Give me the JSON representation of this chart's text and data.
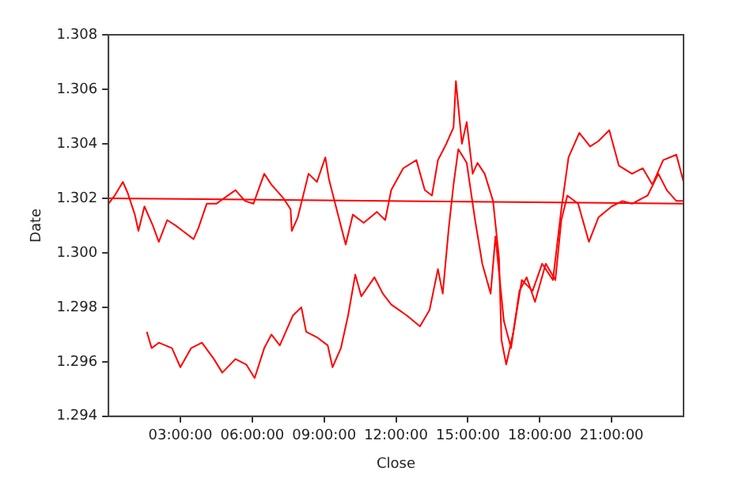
{
  "chart_data": {
    "type": "line",
    "xlabel": "Close",
    "ylabel": "Date",
    "xlim": [
      0,
      24
    ],
    "ylim": [
      1.294,
      1.308
    ],
    "xticks": [
      {
        "value": 3,
        "label": "03:00:00"
      },
      {
        "value": 6,
        "label": "06:00:00"
      },
      {
        "value": 9,
        "label": "09:00:00"
      },
      {
        "value": 12,
        "label": "12:00:00"
      },
      {
        "value": 15,
        "label": "15:00:00"
      },
      {
        "value": 18,
        "label": "18:00:00"
      },
      {
        "value": 21,
        "label": "21:00:00"
      }
    ],
    "yticks": [
      {
        "value": 1.294,
        "label": "1.294"
      },
      {
        "value": 1.296,
        "label": "1.296"
      },
      {
        "value": 1.298,
        "label": "1.298"
      },
      {
        "value": 1.3,
        "label": "1.300"
      },
      {
        "value": 1.302,
        "label": "1.302"
      },
      {
        "value": 1.304,
        "label": "1.304"
      },
      {
        "value": 1.306,
        "label": "1.306"
      },
      {
        "value": 1.308,
        "label": "1.308"
      }
    ],
    "grid": false,
    "legend": false,
    "marker": "none",
    "line_style": "solid",
    "series": [
      {
        "color": "#ff0000",
        "x": [
          0,
          0.26,
          0.6,
          0.8,
          1.1,
          1.25,
          1.5,
          1.85,
          2.1,
          2.45,
          2.8,
          3.1,
          3.55,
          3.75,
          4.1,
          4.5,
          5.3,
          5.7,
          6.05,
          6.5,
          6.8,
          7.3,
          7.6,
          7.65,
          7.9,
          8.35,
          8.7,
          9.05,
          9.2,
          9.55,
          9.9,
          10.2,
          10.65,
          11.2,
          11.55,
          11.8,
          12.3,
          12.85,
          13.2,
          13.5,
          13.75,
          14.1,
          14.4,
          14.5,
          14.75,
          14.95,
          15.2,
          15.4,
          15.7,
          16.05,
          16.3,
          16.4,
          16.6,
          16.9,
          17.25,
          17.7,
          18.1,
          18.55,
          18.9,
          19.2,
          19.65,
          20.1,
          20.45,
          20.9,
          21.3,
          21.85,
          22.3,
          22.7,
          23.15,
          23.7,
          24
        ],
        "values": [
          1.3018,
          1.3021,
          1.3026,
          1.3022,
          1.3014,
          1.3008,
          1.3017,
          1.301,
          1.3004,
          1.3012,
          1.301,
          1.3008,
          1.3005,
          1.3009,
          1.3018,
          1.3018,
          1.3023,
          1.3019,
          1.3018,
          1.3029,
          1.3025,
          1.302,
          1.3016,
          1.3008,
          1.3013,
          1.3029,
          1.3026,
          1.3035,
          1.3027,
          1.3015,
          1.3003,
          1.3014,
          1.3011,
          1.3015,
          1.3012,
          1.3023,
          1.3031,
          1.3034,
          1.3023,
          1.3021,
          1.3034,
          1.304,
          1.3046,
          1.3063,
          1.304,
          1.3048,
          1.3029,
          1.3033,
          1.3029,
          1.3019,
          1.2998,
          1.2968,
          1.2959,
          1.2971,
          1.299,
          1.2986,
          1.2996,
          1.299,
          1.3016,
          1.3035,
          1.3044,
          1.3039,
          1.3041,
          1.3045,
          1.3032,
          1.3029,
          1.3031,
          1.3025,
          1.3034,
          1.3036,
          1.3026
        ]
      },
      {
        "color": "#ff0000",
        "x": [
          1.6,
          1.8,
          2.1,
          2.65,
          3,
          3.45,
          3.9,
          4.4,
          4.75,
          5.3,
          5.75,
          6.1,
          6.5,
          6.8,
          7.15,
          7.7,
          8.05,
          8.25,
          8.7,
          9.15,
          9.35,
          9.7,
          10,
          10.3,
          10.55,
          11.1,
          11.45,
          11.8,
          12.45,
          13,
          13.4,
          13.75,
          13.95,
          14.2,
          14.4,
          14.6,
          14.95,
          15.3,
          15.6,
          15.95,
          16.15,
          16.5,
          16.8,
          17.15,
          17.45,
          17.8,
          18.25,
          18.65,
          18.9,
          19.15,
          19.6,
          20.05,
          20.45,
          21,
          21.45,
          21.85,
          22.5,
          22.95,
          23.3,
          23.7,
          24
        ],
        "values": [
          1.2971,
          1.2965,
          1.2967,
          1.2965,
          1.2958,
          1.2965,
          1.2967,
          1.2961,
          1.2956,
          1.2961,
          1.2959,
          1.2954,
          1.2965,
          1.297,
          1.2966,
          1.2977,
          1.298,
          1.2971,
          1.2969,
          1.2966,
          1.2958,
          1.2965,
          1.2977,
          1.2992,
          1.2984,
          1.2991,
          1.2985,
          1.2981,
          1.2977,
          1.2973,
          1.2979,
          1.2994,
          1.2985,
          1.3009,
          1.3025,
          1.3038,
          1.3033,
          1.3012,
          1.2996,
          1.2985,
          1.3006,
          1.2975,
          1.2965,
          1.2986,
          1.2991,
          1.2982,
          1.2996,
          1.299,
          1.3012,
          1.3021,
          1.3018,
          1.3004,
          1.3013,
          1.3017,
          1.3019,
          1.3018,
          1.3021,
          1.3029,
          1.3023,
          1.3019,
          1.3019
        ]
      },
      {
        "color": "#ff0000",
        "x": [
          0,
          24
        ],
        "values": [
          1.302,
          1.3018
        ]
      }
    ]
  }
}
